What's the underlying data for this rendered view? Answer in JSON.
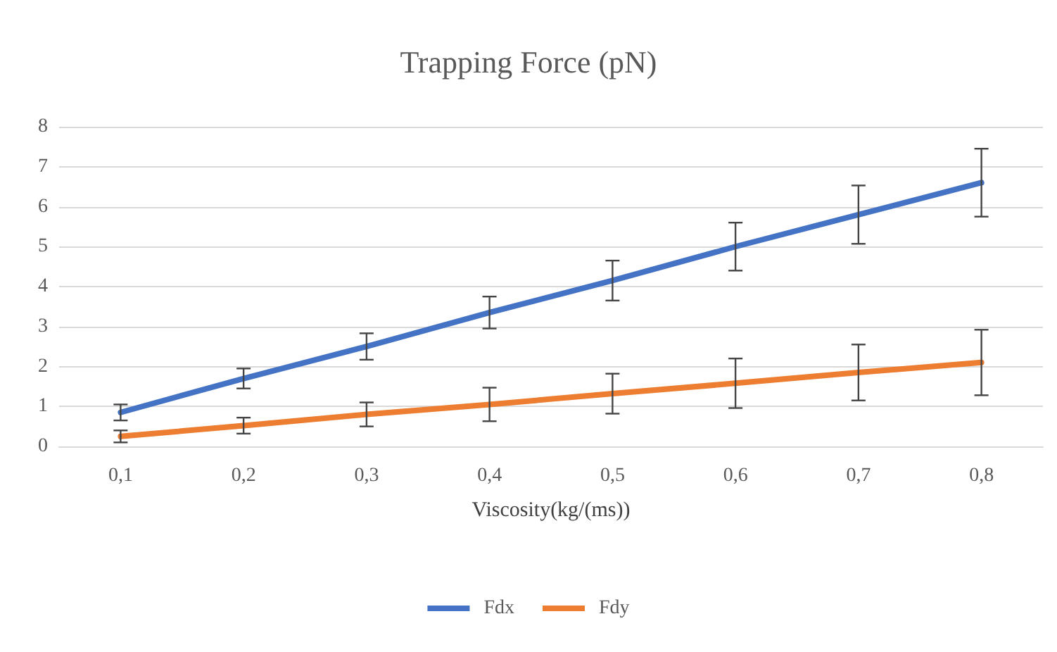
{
  "chart_data": {
    "type": "line",
    "title": "Trapping Force (pN)",
    "xlabel": "Viscosity(kg/(ms))",
    "categories": [
      "0,1",
      "0,2",
      "0,3",
      "0,4",
      "0,5",
      "0,6",
      "0,7",
      "0,8"
    ],
    "series": [
      {
        "name": "Fdx",
        "color": "#4472c4",
        "values": [
          0.85,
          1.7,
          2.5,
          3.35,
          4.15,
          5.0,
          5.8,
          6.6
        ],
        "errors": [
          0.2,
          0.25,
          0.33,
          0.4,
          0.5,
          0.6,
          0.73,
          0.85
        ]
      },
      {
        "name": "Fdy",
        "color": "#ed7d31",
        "values": [
          0.25,
          0.52,
          0.8,
          1.05,
          1.32,
          1.58,
          1.85,
          2.1
        ],
        "errors": [
          0.15,
          0.2,
          0.3,
          0.42,
          0.5,
          0.62,
          0.7,
          0.82
        ]
      }
    ],
    "ylim": [
      0,
      8
    ],
    "yticks": [
      0,
      1,
      2,
      3,
      4,
      5,
      6,
      7,
      8
    ],
    "grid": "y",
    "legend": "bottom",
    "marker": "none",
    "line_style": "solid"
  }
}
